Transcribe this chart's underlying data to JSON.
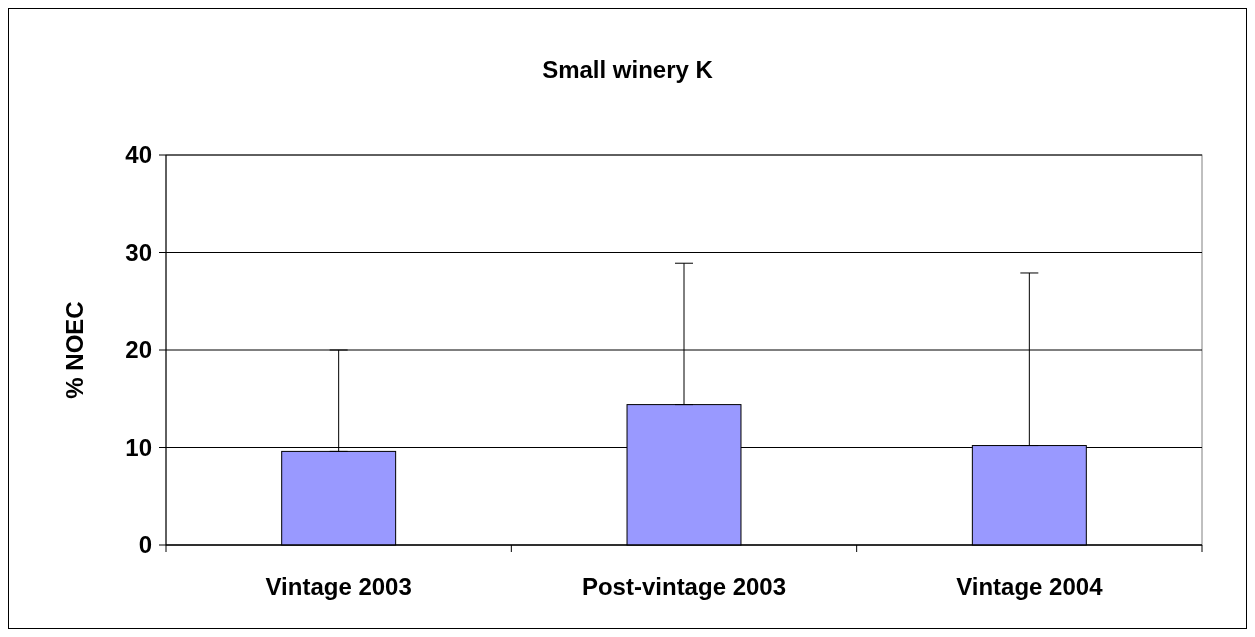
{
  "chart_data": {
    "type": "bar",
    "title": "Small winery K",
    "ylabel": "% NOEC",
    "categories": [
      "Vintage 2003",
      "Post-vintage 2003",
      "Vintage 2004"
    ],
    "values": [
      9.6,
      14.4,
      10.2
    ],
    "errors": [
      [
        9.6,
        20.0
      ],
      [
        14.4,
        28.9
      ],
      [
        10.2,
        27.9
      ]
    ],
    "color": "#9999ff",
    "ylim": [
      0,
      40
    ],
    "yticks": [
      0,
      10,
      20,
      30,
      40
    ],
    "grid": "y"
  }
}
